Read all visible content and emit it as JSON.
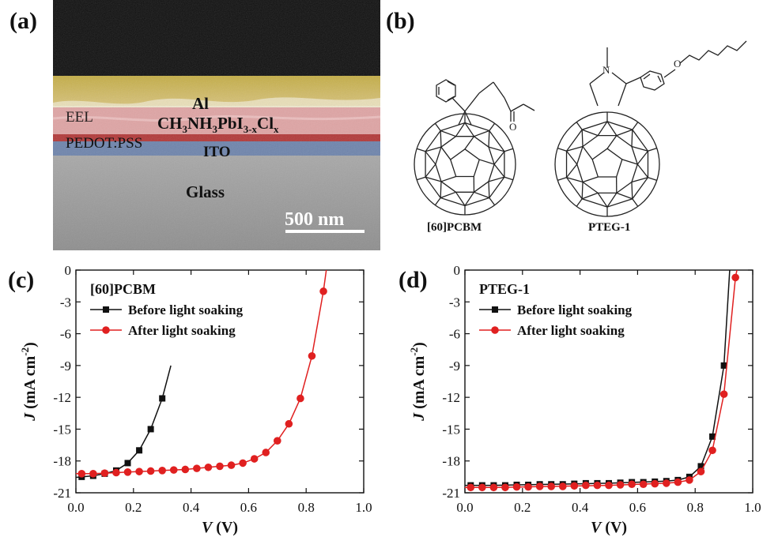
{
  "panel_labels": {
    "a": "(a)",
    "b": "(b)",
    "c": "(c)",
    "d": "(d)"
  },
  "sem": {
    "layers": {
      "al": "Al",
      "eel": "EEL",
      "perovskite_prefix": "CH",
      "perovskite_sub1": "3",
      "perovskite_mid": "NH",
      "perovskite_sub2": "3",
      "perovskite_pbi": "PbI",
      "perovskite_sub3": "3-x",
      "perovskite_cl": "Cl",
      "perovskite_sub4": "x",
      "pedot": "PEDOT:PSS",
      "ito": "ITO",
      "glass": "Glass"
    },
    "scale_bar_label": "500 nm",
    "colors": {
      "top_black": "#111111",
      "al_layer": "#c9b24a",
      "al_highlight": "#e8dfb9",
      "perovskite_layer": "#e0a5a5",
      "pedot_layer": "#b83a3a",
      "ito_layer": "#6f86ad",
      "glass_layer": "#9d9d9d"
    }
  },
  "structures": {
    "left_name": "[60]PCBM",
    "right_name": "PTEG-1",
    "left_atom_label": "O",
    "right_atom_n": "N",
    "right_atom_o": "O"
  },
  "chart_data": [
    {
      "type": "line",
      "panel": "c",
      "inset_title": "[60]PCBM",
      "xlabel_var": "V",
      "xlabel_unit": " (V)",
      "ylabel_var": "J",
      "ylabel_unit": " (mA cm",
      "ylabel_sup": "-2",
      "ylabel_close": ")",
      "xlim": [
        0.0,
        1.0
      ],
      "ylim": [
        -21,
        0
      ],
      "x_ticks": [
        0.0,
        0.2,
        0.4,
        0.6,
        0.8,
        1.0
      ],
      "x_tick_labels": [
        "0.0",
        "0.2",
        "0.4",
        "0.6",
        "0.8",
        "1.0"
      ],
      "y_ticks": [
        0,
        -3,
        -6,
        -9,
        -12,
        -15,
        -18,
        -21
      ],
      "y_tick_labels": [
        "0",
        "-3",
        "-6",
        "-9",
        "-12",
        "-15",
        "-18",
        "-21"
      ],
      "legend_placement": "top-left",
      "series": [
        {
          "name": "Before light soaking",
          "color": "#111111",
          "marker": "square",
          "x": [
            0.02,
            0.06,
            0.1,
            0.14,
            0.18,
            0.22,
            0.26,
            0.3
          ],
          "y": [
            -19.5,
            -19.4,
            -19.2,
            -18.9,
            -18.2,
            -17.0,
            -15.0,
            -12.1
          ],
          "line_x": [
            0.0,
            0.02,
            0.06,
            0.1,
            0.14,
            0.18,
            0.22,
            0.26,
            0.3,
            0.33
          ],
          "line_y": [
            -19.55,
            -19.5,
            -19.4,
            -19.2,
            -18.9,
            -18.2,
            -17.0,
            -15.0,
            -12.1,
            -9.0
          ]
        },
        {
          "name": "After light soaking",
          "color": "#e02020",
          "marker": "circle",
          "x": [
            0.02,
            0.06,
            0.1,
            0.14,
            0.18,
            0.22,
            0.26,
            0.3,
            0.34,
            0.38,
            0.42,
            0.46,
            0.5,
            0.54,
            0.58,
            0.62,
            0.66,
            0.7,
            0.74,
            0.78,
            0.82,
            0.86
          ],
          "y": [
            -19.2,
            -19.2,
            -19.15,
            -19.1,
            -19.05,
            -19.0,
            -18.95,
            -18.9,
            -18.85,
            -18.8,
            -18.7,
            -18.6,
            -18.5,
            -18.4,
            -18.2,
            -17.8,
            -17.2,
            -16.1,
            -14.5,
            -12.1,
            -8.1,
            -2.0
          ],
          "line_x": [
            0.0,
            0.02,
            0.06,
            0.1,
            0.14,
            0.18,
            0.22,
            0.26,
            0.3,
            0.34,
            0.38,
            0.42,
            0.46,
            0.5,
            0.54,
            0.58,
            0.62,
            0.66,
            0.7,
            0.74,
            0.78,
            0.82,
            0.86,
            0.87
          ],
          "line_y": [
            -19.2,
            -19.2,
            -19.2,
            -19.15,
            -19.1,
            -19.05,
            -19.0,
            -18.95,
            -18.9,
            -18.85,
            -18.8,
            -18.7,
            -18.6,
            -18.5,
            -18.4,
            -18.2,
            -17.8,
            -17.2,
            -16.1,
            -14.5,
            -12.1,
            -8.1,
            -2.0,
            0.0
          ]
        }
      ]
    },
    {
      "type": "line",
      "panel": "d",
      "inset_title": "PTEG-1",
      "xlabel_var": "V",
      "xlabel_unit": " (V)",
      "ylabel_var": "J",
      "ylabel_unit": " (mA cm",
      "ylabel_sup": "-2",
      "ylabel_close": ")",
      "xlim": [
        0.0,
        1.0
      ],
      "ylim": [
        -21,
        0
      ],
      "x_ticks": [
        0.0,
        0.2,
        0.4,
        0.6,
        0.8,
        1.0
      ],
      "x_tick_labels": [
        "0.0",
        "0.2",
        "0.4",
        "0.6",
        "0.8",
        "1.0"
      ],
      "y_ticks": [
        0,
        -3,
        -6,
        -9,
        -12,
        -15,
        -18,
        -21
      ],
      "y_tick_labels": [
        "0",
        "-3",
        "-6",
        "-9",
        "-12",
        "-15",
        "-18",
        "-21"
      ],
      "legend_placement": "top-left",
      "series": [
        {
          "name": "Before light soaking",
          "color": "#111111",
          "marker": "square",
          "x": [
            0.02,
            0.06,
            0.1,
            0.14,
            0.18,
            0.22,
            0.26,
            0.3,
            0.34,
            0.38,
            0.42,
            0.46,
            0.5,
            0.54,
            0.58,
            0.62,
            0.66,
            0.7,
            0.74,
            0.78,
            0.82,
            0.86,
            0.9
          ],
          "y": [
            -20.3,
            -20.3,
            -20.3,
            -20.3,
            -20.25,
            -20.25,
            -20.2,
            -20.2,
            -20.2,
            -20.15,
            -20.1,
            -20.1,
            -20.1,
            -20.05,
            -20.0,
            -20.0,
            -19.95,
            -19.9,
            -19.8,
            -19.5,
            -18.5,
            -15.7,
            -9.0
          ],
          "line_x": [
            0.0,
            0.02,
            0.1,
            0.2,
            0.3,
            0.4,
            0.5,
            0.6,
            0.7,
            0.74,
            0.78,
            0.82,
            0.86,
            0.9,
            0.92
          ],
          "line_y": [
            -20.3,
            -20.3,
            -20.3,
            -20.25,
            -20.2,
            -20.15,
            -20.1,
            -20.0,
            -19.9,
            -19.8,
            -19.5,
            -18.5,
            -15.7,
            -9.0,
            0.0
          ]
        },
        {
          "name": "After light soaking",
          "color": "#e02020",
          "marker": "circle",
          "x": [
            0.02,
            0.06,
            0.1,
            0.14,
            0.18,
            0.22,
            0.26,
            0.3,
            0.34,
            0.38,
            0.42,
            0.46,
            0.5,
            0.54,
            0.58,
            0.62,
            0.66,
            0.7,
            0.74,
            0.78,
            0.82,
            0.86,
            0.9,
            0.94
          ],
          "y": [
            -20.5,
            -20.5,
            -20.5,
            -20.5,
            -20.45,
            -20.45,
            -20.4,
            -20.4,
            -20.4,
            -20.35,
            -20.3,
            -20.3,
            -20.3,
            -20.25,
            -20.2,
            -20.2,
            -20.15,
            -20.1,
            -20.0,
            -19.8,
            -19.0,
            -17.0,
            -11.7,
            -0.7
          ],
          "line_x": [
            0.0,
            0.02,
            0.1,
            0.2,
            0.3,
            0.4,
            0.5,
            0.6,
            0.7,
            0.74,
            0.78,
            0.82,
            0.86,
            0.9,
            0.94,
            0.945
          ],
          "line_y": [
            -20.5,
            -20.5,
            -20.5,
            -20.45,
            -20.4,
            -20.35,
            -20.3,
            -20.2,
            -20.1,
            -20.0,
            -19.8,
            -19.0,
            -17.0,
            -11.7,
            -0.7,
            0.0
          ]
        }
      ]
    }
  ]
}
